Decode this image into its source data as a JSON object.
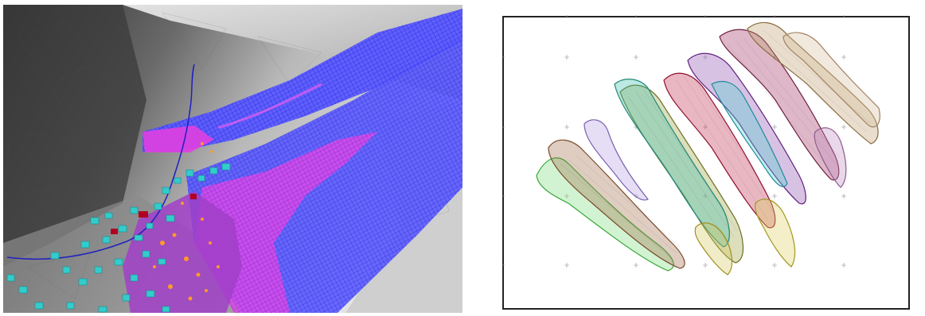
{
  "figure": {
    "panels": [
      {
        "id": "terrain-3d-view",
        "description_hidden": true
      },
      {
        "id": "plan-view-map"
      }
    ]
  },
  "colors": {
    "terrain_dark": "#3a3a3a",
    "terrain_light": "#d8d8d8",
    "flow_blue": "#3a3aff",
    "flow_magenta": "#e040e0",
    "buildings": "#33cccc",
    "buildings_damaged": "#b00020",
    "hotspot": "#ff9a2a",
    "map_frame": "#222222"
  },
  "map": {
    "top_ticks": [
      "",
      "",
      "",
      "",
      ""
    ],
    "left_ticks": [
      "",
      "",
      "",
      ""
    ],
    "right_ticks": [
      "",
      "",
      "",
      ""
    ]
  }
}
